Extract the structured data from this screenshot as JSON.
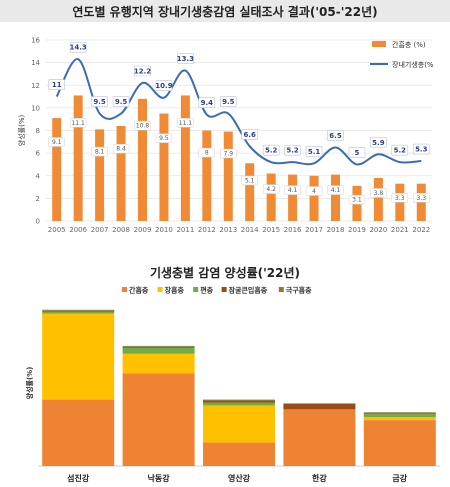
{
  "title_top": "연도별 유행지역 장내기생충감염 실태조사 결과('05-'22년)",
  "title_bottom": "기생충별 감염 양성률('22년)",
  "chart_data": [
    {
      "type": "bar",
      "categories": [
        "2005",
        "2006",
        "2007",
        "2008",
        "2009",
        "2010",
        "2011",
        "2012",
        "2013",
        "2014",
        "2015",
        "2016",
        "2017",
        "2018",
        "2019",
        "2020",
        "2021",
        "2022"
      ],
      "series": [
        {
          "name": "간흡충 (%)",
          "kind": "bar",
          "color": "#f08a35",
          "values": [
            9.1,
            11.1,
            8.1,
            8.4,
            10.8,
            9.5,
            11.1,
            8,
            7.9,
            5.1,
            4.2,
            4.1,
            4,
            4.1,
            3.1,
            3.8,
            3.3,
            3.3
          ]
        },
        {
          "name": "장내기생충(%",
          "kind": "line",
          "color": "#3b6bb5",
          "values": [
            11,
            14.3,
            9.5,
            9.5,
            12.2,
            10.9,
            13.3,
            9.4,
            9.5,
            6.6,
            5.2,
            5.2,
            5.1,
            6.5,
            5,
            5.9,
            5.2,
            5.3
          ]
        }
      ],
      "ylabel": "양성률(%)",
      "ylim": [
        0,
        16
      ],
      "yticks": [
        0,
        2,
        4,
        6,
        8,
        10,
        12,
        14,
        16
      ],
      "grid": true,
      "legend_position": "top-right"
    },
    {
      "type": "bar",
      "stacked": true,
      "categories": [
        "섬진강",
        "낙동강",
        "영산강",
        "한강",
        "금강"
      ],
      "series": [
        {
          "name": "간흡충",
          "color": "#ee8433",
          "values": [
            6.8,
            9.5,
            2.4,
            5.8,
            4.7
          ]
        },
        {
          "name": "장흡충",
          "color": "#ffc000",
          "values": [
            8.8,
            2.0,
            3.8,
            0,
            0.3
          ]
        },
        {
          "name": "편충",
          "color": "#70ad47",
          "values": [
            0.2,
            0.6,
            0.3,
            0,
            0.3
          ]
        },
        {
          "name": "참굴큰입흡충",
          "color": "#9c4a16",
          "values": [
            0.1,
            0.1,
            0.2,
            0.6,
            0.1
          ]
        },
        {
          "name": "극구흡충",
          "color": "#8a7d3a",
          "values": [
            0.1,
            0.1,
            0.1,
            0,
            0.1
          ]
        }
      ],
      "ylabel": "양성률(%)",
      "ylim": [
        0,
        17
      ],
      "legend_position": "top"
    }
  ]
}
